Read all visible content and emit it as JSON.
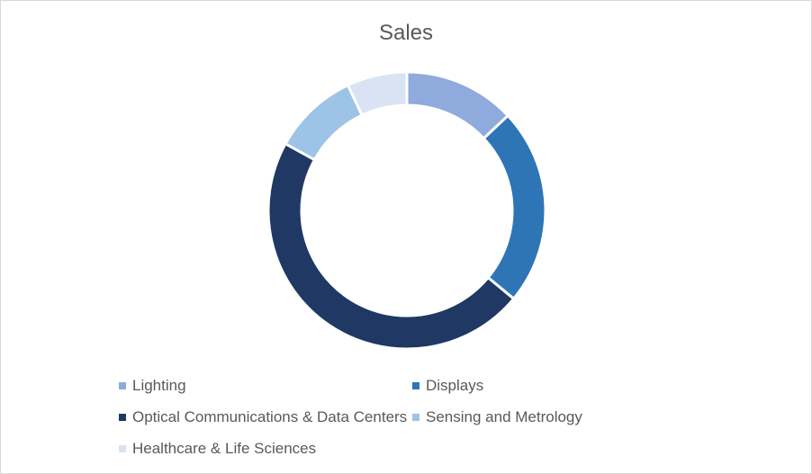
{
  "chart_data": {
    "type": "pie",
    "subtype": "donut",
    "title": "Sales",
    "legend_position": "bottom",
    "categories": [
      "Lighting",
      "Displays",
      "Optical Communications & Data Centers",
      "Sensing and Metrology",
      "Healthcare & Life Sciences"
    ],
    "values": [
      13,
      23,
      47,
      10,
      7
    ],
    "colors": [
      "#8faadc",
      "#2e75b6",
      "#1f3864",
      "#9dc3e6",
      "#dae3f3"
    ]
  }
}
